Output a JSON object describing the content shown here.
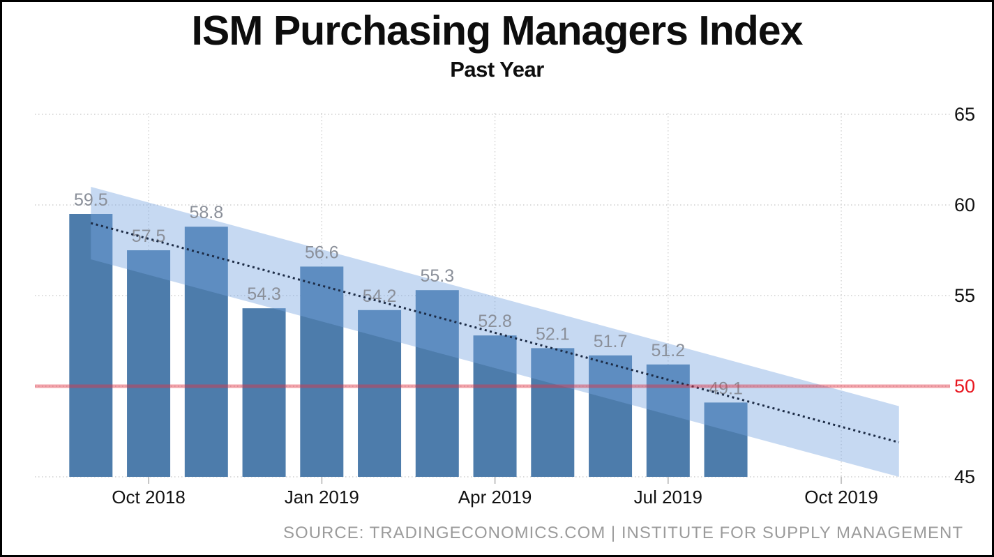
{
  "title": "ISM Purchasing Managers Index",
  "subtitle": "Past Year",
  "source": "SOURCE: TRADINGECONOMICS.COM | INSTITUTE FOR SUPPLY MANAGEMENT",
  "colors": {
    "bar": "#4d7cab",
    "band": "#77a4e1",
    "band_opacity": 0.42,
    "trend": "#1c2b45",
    "threshold": "#e23140",
    "threshold_opacity": 0.45,
    "threshold_label": "#e8151e",
    "grid": "#cfcfcf",
    "tick_mark": "#c4c4c4",
    "value_label": "#8a8f99",
    "axis_text": "#111111"
  },
  "chart_data": {
    "type": "bar",
    "title": "ISM Purchasing Managers Index",
    "subtitle": "Past Year",
    "xlabel": "",
    "ylabel": "",
    "ylim": [
      45,
      65
    ],
    "grid": true,
    "yaxis_side": "right",
    "categories": [
      "Sep 2018",
      "Oct 2018",
      "Nov 2018",
      "Dec 2018",
      "Jan 2019",
      "Feb 2019",
      "Mar 2019",
      "Apr 2019",
      "May 2019",
      "Jun 2019",
      "Jul 2019",
      "Aug 2019"
    ],
    "values": [
      59.5,
      57.5,
      58.8,
      54.3,
      56.6,
      54.2,
      55.3,
      52.8,
      52.1,
      51.7,
      51.2,
      49.1
    ],
    "y_ticks": [
      65,
      60,
      55,
      50,
      45
    ],
    "x_ticks": {
      "labels": [
        "Oct 2018",
        "Jan 2019",
        "Apr 2019",
        "Jul 2019",
        "Oct 2019"
      ],
      "month_indices": [
        1,
        4,
        7,
        10,
        13
      ]
    },
    "threshold_line": {
      "value": 50
    },
    "trend_line": {
      "style": "dotted",
      "start_month_index": 0,
      "end_month_index": 14,
      "values": [
        59.0,
        46.9
      ]
    },
    "forecast_band": {
      "start_month_index": 0,
      "end_month_index": 14,
      "upper": [
        61.0,
        48.9
      ],
      "lower": [
        57.0,
        45.0
      ]
    }
  }
}
